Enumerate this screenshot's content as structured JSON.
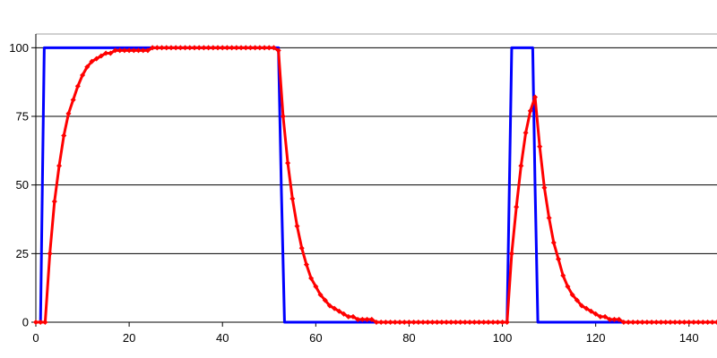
{
  "chart_data": {
    "type": "line",
    "title": "",
    "xlabel": "",
    "ylabel": "",
    "xlim": [
      0,
      146
    ],
    "ylim": [
      0,
      105
    ],
    "x_ticks": [
      0,
      20,
      40,
      60,
      80,
      100,
      120,
      140
    ],
    "y_ticks": [
      0,
      25,
      50,
      75,
      100
    ],
    "grid": "horizontal",
    "legend": "none",
    "series": [
      {
        "color": "#0000ff",
        "marker": "none",
        "x": [
          0,
          1,
          1.8,
          2.2,
          52,
          52.6,
          53.3,
          101,
          101.5,
          102,
          106.5,
          107,
          107.6,
          146
        ],
        "y": [
          0,
          0,
          100,
          100,
          100,
          50,
          0,
          0,
          50,
          100,
          100,
          50,
          0,
          0
        ]
      },
      {
        "color": "#ff0000",
        "marker": "diamond",
        "x": [
          0,
          1,
          2,
          3,
          4,
          5,
          6,
          7,
          8,
          9,
          10,
          11,
          12,
          13,
          14,
          15,
          16,
          17,
          18,
          19,
          20,
          21,
          22,
          23,
          24,
          25,
          26,
          27,
          28,
          29,
          30,
          31,
          32,
          33,
          34,
          35,
          36,
          37,
          38,
          39,
          40,
          41,
          42,
          43,
          44,
          45,
          46,
          47,
          48,
          49,
          50,
          51,
          52,
          53,
          54,
          55,
          56,
          57,
          58,
          59,
          60,
          61,
          62,
          63,
          64,
          65,
          66,
          67,
          68,
          69,
          70,
          71,
          72,
          73,
          74,
          75,
          76,
          77,
          78,
          79,
          80,
          81,
          82,
          83,
          84,
          85,
          86,
          87,
          88,
          89,
          90,
          91,
          92,
          93,
          94,
          95,
          96,
          97,
          98,
          99,
          100,
          101,
          102,
          103,
          104,
          105,
          106,
          107,
          108,
          109,
          110,
          111,
          112,
          113,
          114,
          115,
          116,
          117,
          118,
          119,
          120,
          121,
          122,
          123,
          124,
          125,
          126,
          127,
          128,
          129,
          130,
          131,
          132,
          133,
          134,
          135,
          136,
          137,
          138,
          139,
          140,
          141,
          142,
          143,
          144,
          145,
          146
        ],
        "y": [
          0,
          0,
          0,
          25,
          44,
          57,
          68,
          76,
          81,
          86,
          90,
          93,
          95,
          96,
          97,
          98,
          98,
          99,
          99,
          99,
          99,
          99,
          99,
          99,
          99,
          100,
          100,
          100,
          100,
          100,
          100,
          100,
          100,
          100,
          100,
          100,
          100,
          100,
          100,
          100,
          100,
          100,
          100,
          100,
          100,
          100,
          100,
          100,
          100,
          100,
          100,
          100,
          99,
          75,
          58,
          45,
          35,
          27,
          21,
          16,
          13,
          10,
          8,
          6,
          5,
          4,
          3,
          2,
          2,
          1,
          1,
          1,
          1,
          0,
          0,
          0,
          0,
          0,
          0,
          0,
          0,
          0,
          0,
          0,
          0,
          0,
          0,
          0,
          0,
          0,
          0,
          0,
          0,
          0,
          0,
          0,
          0,
          0,
          0,
          0,
          0,
          0,
          25,
          42,
          57,
          69,
          77,
          82,
          64,
          49,
          38,
          29,
          23,
          17,
          13,
          10,
          8,
          6,
          5,
          4,
          3,
          2,
          2,
          1,
          1,
          1,
          0,
          0,
          0,
          0,
          0,
          0,
          0,
          0,
          0,
          0,
          0,
          0,
          0,
          0,
          0,
          0,
          0,
          0,
          0,
          0,
          0
        ]
      }
    ]
  }
}
